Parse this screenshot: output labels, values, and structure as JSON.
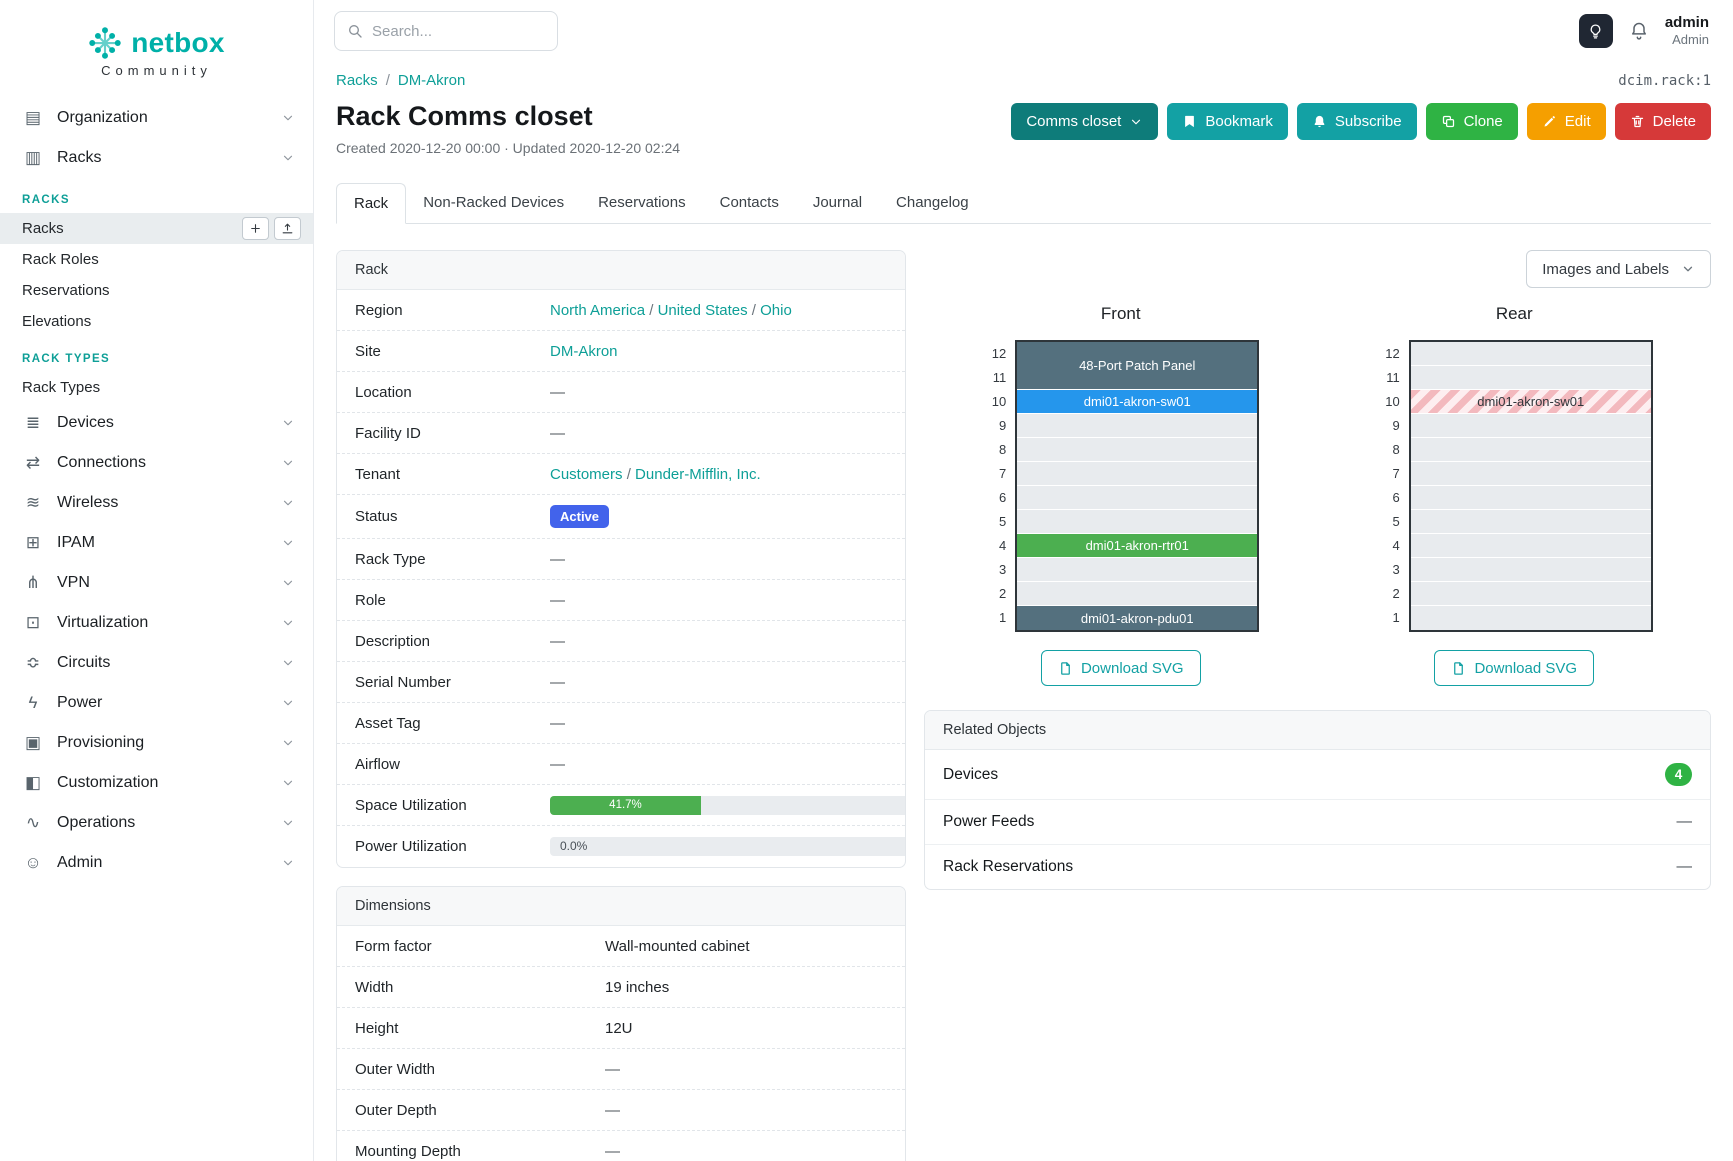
{
  "colors": {
    "brand_teal": "#00b0a8",
    "link_teal": "#0e9f97",
    "button_teal": "#13a1a4",
    "dark_teal": "#0e7c7a",
    "green": "#2fb344",
    "orange": "#f59f00",
    "red": "#d63939",
    "status_blue": "#4263eb",
    "progress_green": "#4caf50",
    "device_dark": "#54707e",
    "device_blue": "#2596ec",
    "device_green": "#4caf50",
    "badge_green": "#2fb344"
  },
  "brand": {
    "name": "netbox",
    "tagline": "Community"
  },
  "topbar": {
    "search_placeholder": "Search...",
    "user": {
      "name": "admin",
      "role": "Admin"
    }
  },
  "sidebar": {
    "entries": [
      {
        "kind": "group",
        "label": "Organization",
        "icon": "organization-icon",
        "glyph": "▤"
      },
      {
        "kind": "group",
        "label": "Racks",
        "icon": "racks-icon",
        "glyph": "▥",
        "expanded": true
      },
      {
        "kind": "header",
        "label": "RACKS"
      },
      {
        "kind": "link",
        "label": "Racks",
        "active": true,
        "actions": true
      },
      {
        "kind": "link",
        "label": "Rack Roles"
      },
      {
        "kind": "link",
        "label": "Reservations"
      },
      {
        "kind": "link",
        "label": "Elevations"
      },
      {
        "kind": "header",
        "label": "RACK TYPES"
      },
      {
        "kind": "link",
        "label": "Rack Types"
      },
      {
        "kind": "group",
        "label": "Devices",
        "icon": "devices-icon",
        "glyph": "≣"
      },
      {
        "kind": "group",
        "label": "Connections",
        "icon": "connections-icon",
        "glyph": "⇄"
      },
      {
        "kind": "group",
        "label": "Wireless",
        "icon": "wireless-icon",
        "glyph": "≋"
      },
      {
        "kind": "group",
        "label": "IPAM",
        "icon": "ipam-icon",
        "glyph": "⊞"
      },
      {
        "kind": "group",
        "label": "VPN",
        "icon": "vpn-icon",
        "glyph": "⋔"
      },
      {
        "kind": "group",
        "label": "Virtualization",
        "icon": "virtualization-icon",
        "glyph": "⊡"
      },
      {
        "kind": "group",
        "label": "Circuits",
        "icon": "circuits-icon",
        "glyph": "≎"
      },
      {
        "kind": "group",
        "label": "Power",
        "icon": "power-icon",
        "glyph": "ϟ"
      },
      {
        "kind": "group",
        "label": "Provisioning",
        "icon": "provisioning-icon",
        "glyph": "▣"
      },
      {
        "kind": "group",
        "label": "Customization",
        "icon": "customization-icon",
        "glyph": "◧"
      },
      {
        "kind": "group",
        "label": "Operations",
        "icon": "operations-icon",
        "glyph": "∿"
      },
      {
        "kind": "group",
        "label": "Admin",
        "icon": "admin-icon",
        "glyph": "☺"
      }
    ]
  },
  "page": {
    "breadcrumb": [
      "Racks",
      "DM-Akron"
    ],
    "breadcrumb_separator": "/",
    "object_ref": "dcim.rack:1",
    "title": "Rack Comms closet",
    "meta": "Created 2020-12-20 00:00 · Updated 2020-12-20 02:24",
    "actions": [
      {
        "label": "Comms closet",
        "style": "darkteal",
        "caret": true
      },
      {
        "label": "Bookmark",
        "style": "teal",
        "icon": "bookmark-icon"
      },
      {
        "label": "Subscribe",
        "style": "teal",
        "icon": "bell-icon"
      },
      {
        "label": "Clone",
        "style": "green",
        "icon": "copy-icon"
      },
      {
        "label": "Edit",
        "style": "orange",
        "icon": "pencil-icon"
      },
      {
        "label": "Delete",
        "style": "red",
        "icon": "trash-icon"
      }
    ],
    "tabs": [
      {
        "label": "Rack",
        "active": true
      },
      {
        "label": "Non-Racked Devices"
      },
      {
        "label": "Reservations"
      },
      {
        "label": "Contacts"
      },
      {
        "label": "Journal"
      },
      {
        "label": "Changelog"
      }
    ]
  },
  "rack_card": {
    "title": "Rack",
    "rows": [
      {
        "label": "Region",
        "parts": [
          {
            "kind": "link",
            "text": "North America"
          },
          {
            "kind": "sep",
            "text": " / "
          },
          {
            "kind": "link",
            "text": "United States"
          },
          {
            "kind": "sep",
            "text": " / "
          },
          {
            "kind": "link",
            "text": "Ohio"
          }
        ]
      },
      {
        "label": "Site",
        "parts": [
          {
            "kind": "link",
            "text": "DM-Akron"
          }
        ]
      },
      {
        "label": "Location",
        "parts": [
          {
            "kind": "dash",
            "text": "—"
          }
        ]
      },
      {
        "label": "Facility ID",
        "parts": [
          {
            "kind": "dash",
            "text": "—"
          }
        ]
      },
      {
        "label": "Tenant",
        "parts": [
          {
            "kind": "link",
            "text": "Customers"
          },
          {
            "kind": "sep",
            "text": " / "
          },
          {
            "kind": "link",
            "text": "Dunder-Mifflin, Inc."
          }
        ]
      },
      {
        "label": "Status",
        "parts": [
          {
            "kind": "badge",
            "text": "Active"
          }
        ]
      },
      {
        "label": "Rack Type",
        "parts": [
          {
            "kind": "dash",
            "text": "—"
          }
        ]
      },
      {
        "label": "Role",
        "parts": [
          {
            "kind": "dash",
            "text": "—"
          }
        ]
      },
      {
        "label": "Description",
        "parts": [
          {
            "kind": "dash",
            "text": "—"
          }
        ]
      },
      {
        "label": "Serial Number",
        "parts": [
          {
            "kind": "dash",
            "text": "—"
          }
        ]
      },
      {
        "label": "Asset Tag",
        "parts": [
          {
            "kind": "dash",
            "text": "—"
          }
        ]
      },
      {
        "label": "Airflow",
        "parts": [
          {
            "kind": "dash",
            "text": "—"
          }
        ]
      },
      {
        "label": "Space Utilization",
        "parts": [
          {
            "kind": "progress",
            "percent": 41.7,
            "text": "41.7%"
          }
        ]
      },
      {
        "label": "Power Utilization",
        "parts": [
          {
            "kind": "progress",
            "percent": 0,
            "text": "0.0%"
          }
        ]
      }
    ]
  },
  "dimensions_card": {
    "title": "Dimensions",
    "rows": [
      {
        "label": "Form factor",
        "parts": [
          {
            "kind": "text",
            "text": "Wall-mounted cabinet"
          }
        ]
      },
      {
        "label": "Width",
        "parts": [
          {
            "kind": "text",
            "text": "19 inches"
          }
        ]
      },
      {
        "label": "Height",
        "parts": [
          {
            "kind": "text",
            "text": "12U"
          }
        ]
      },
      {
        "label": "Outer Width",
        "parts": [
          {
            "kind": "dash",
            "text": "—"
          }
        ]
      },
      {
        "label": "Outer Depth",
        "parts": [
          {
            "kind": "dash",
            "text": "—"
          }
        ]
      },
      {
        "label": "Mounting Depth",
        "parts": [
          {
            "kind": "dash",
            "text": "—"
          }
        ]
      }
    ]
  },
  "elevations": {
    "toolbar_button": "Images and Labels",
    "download_label": "Download SVG",
    "units": [
      12,
      11,
      10,
      9,
      8,
      7,
      6,
      5,
      4,
      3,
      2,
      1
    ],
    "racks": [
      {
        "title": "Front",
        "slots": [
          {
            "span": 2,
            "style": "dark",
            "label": "48-Port Patch Panel"
          },
          {
            "span": 1,
            "style": "blue",
            "label": "dmi01-akron-sw01"
          },
          {
            "span": 1,
            "style": "empty"
          },
          {
            "span": 1,
            "style": "empty"
          },
          {
            "span": 1,
            "style": "empty"
          },
          {
            "span": 1,
            "style": "empty"
          },
          {
            "span": 1,
            "style": "empty"
          },
          {
            "span": 1,
            "style": "green",
            "label": "dmi01-akron-rtr01"
          },
          {
            "span": 1,
            "style": "empty"
          },
          {
            "span": 1,
            "style": "empty"
          },
          {
            "span": 1,
            "style": "dark",
            "label": "dmi01-akron-pdu01"
          }
        ]
      },
      {
        "title": "Rear",
        "slots": [
          {
            "span": 1,
            "style": "empty"
          },
          {
            "span": 1,
            "style": "empty"
          },
          {
            "span": 1,
            "style": "striped",
            "label": "dmi01-akron-sw01"
          },
          {
            "span": 1,
            "style": "empty"
          },
          {
            "span": 1,
            "style": "empty"
          },
          {
            "span": 1,
            "style": "empty"
          },
          {
            "span": 1,
            "style": "empty"
          },
          {
            "span": 1,
            "style": "empty"
          },
          {
            "span": 1,
            "style": "empty"
          },
          {
            "span": 1,
            "style": "empty"
          },
          {
            "span": 1,
            "style": "empty"
          },
          {
            "span": 1,
            "style": "empty"
          }
        ]
      }
    ]
  },
  "related_objects": {
    "title": "Related Objects",
    "rows": [
      {
        "label": "Devices",
        "badge": "4"
      },
      {
        "label": "Power Feeds",
        "value": "—"
      },
      {
        "label": "Rack Reservations",
        "value": "—"
      }
    ]
  }
}
